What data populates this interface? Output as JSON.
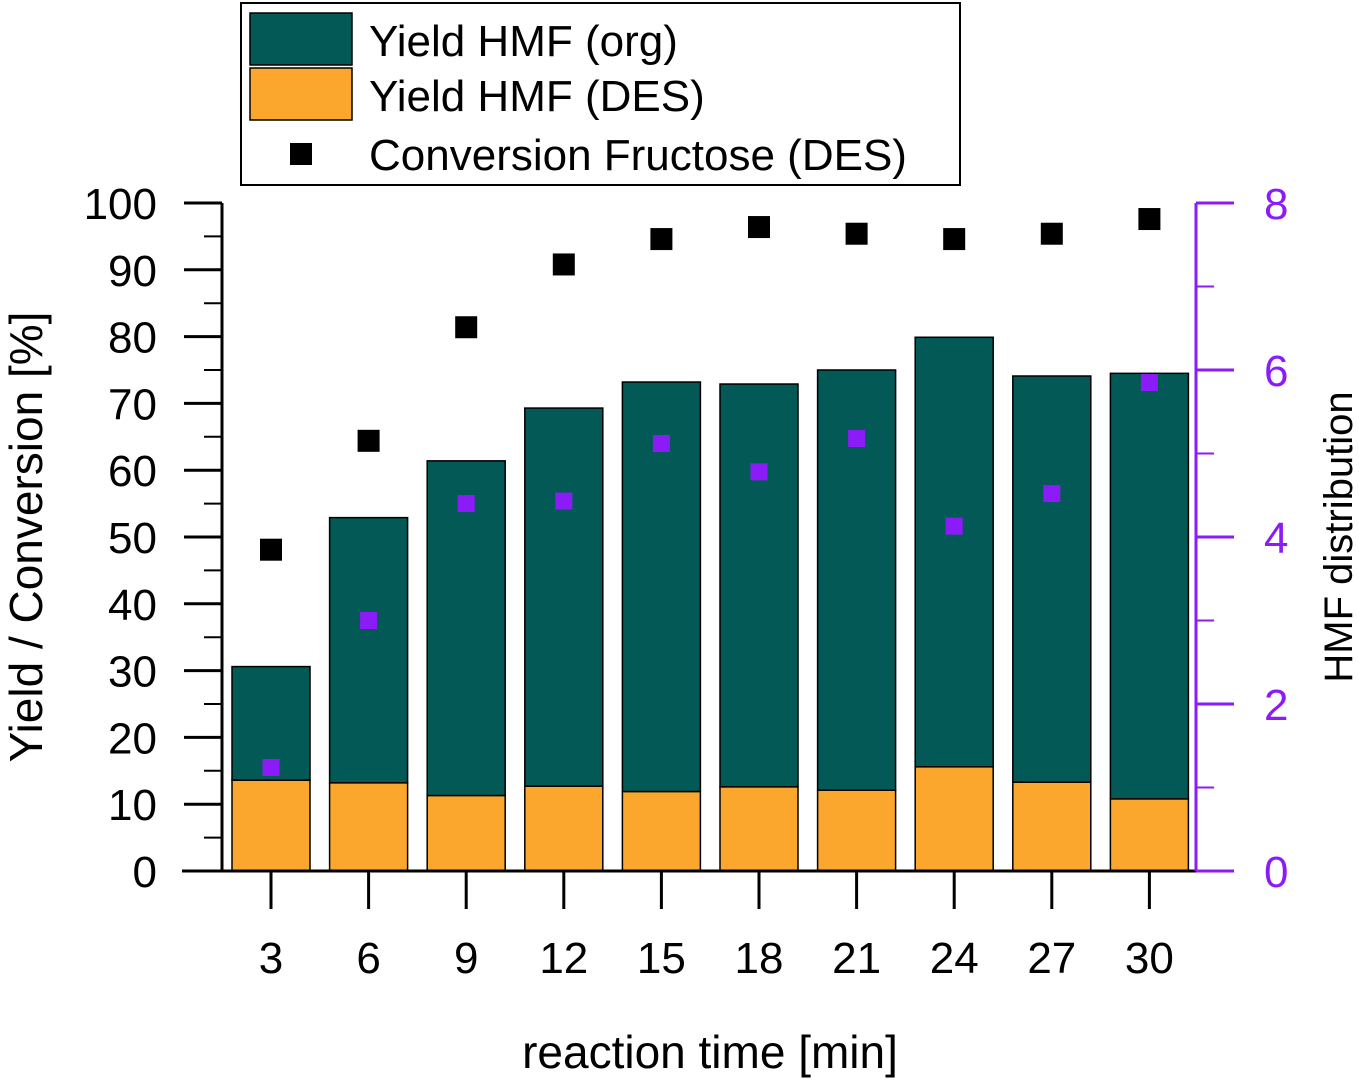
{
  "chart_data": {
    "type": "bar",
    "stacked": true,
    "x": [
      "3",
      "6",
      "9",
      "12",
      "15",
      "18",
      "21",
      "24",
      "27",
      "30"
    ],
    "xlabel": "reaction time [min]",
    "ylabel": "Yield / Conversion [%]",
    "ylim": [
      0,
      100
    ],
    "yticks": [
      "0",
      "10",
      "20",
      "30",
      "40",
      "50",
      "60",
      "70",
      "80",
      "90",
      "100"
    ],
    "y2label": "HMF distribution",
    "y2lim": [
      0,
      8
    ],
    "y2ticks": [
      "0",
      "2",
      "4",
      "6",
      "8"
    ],
    "grid": false,
    "legend_position": "top",
    "series": [
      {
        "name": "Yield HMF (DES)",
        "kind": "bar",
        "color": "#fba72e",
        "values": [
          13.6,
          13.2,
          11.3,
          12.7,
          11.9,
          12.6,
          12.1,
          15.6,
          13.3,
          10.8
        ]
      },
      {
        "name": "Yield HMF (org)",
        "kind": "bar",
        "color": "#035955",
        "values": [
          17.0,
          39.7,
          50.1,
          56.6,
          61.3,
          60.3,
          62.9,
          64.3,
          60.8,
          63.7
        ]
      },
      {
        "name": "Conversion Fructose (DES)",
        "kind": "scatter",
        "axis": "left",
        "color": "#000000",
        "values": [
          48.1,
          64.4,
          81.4,
          90.8,
          94.6,
          96.4,
          95.4,
          94.6,
          95.4,
          97.6
        ]
      },
      {
        "kind": "scatter",
        "axis": "right",
        "color": "#8b1cf7",
        "values": [
          1.24,
          3.0,
          4.4,
          4.43,
          5.12,
          4.78,
          5.18,
          4.13,
          4.52,
          5.85
        ]
      }
    ],
    "legend": [
      {
        "label": "Yield HMF (org)",
        "swatch": "bar",
        "color": "#035955"
      },
      {
        "label": "Yield HMF (DES)",
        "swatch": "bar",
        "color": "#fba72e"
      },
      {
        "label": "Conversion Fructose (DES)",
        "swatch": "square",
        "color": "#000000"
      }
    ],
    "colors": {
      "axis": "#000000",
      "right_axis": "#8b1cf7",
      "bar_stroke": "#000000"
    }
  }
}
